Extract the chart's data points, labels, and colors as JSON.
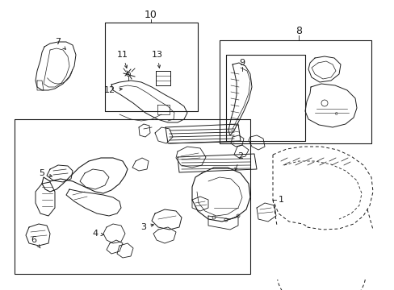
{
  "bg_color": "#ffffff",
  "line_color": "#1a1a1a",
  "fig_width": 4.89,
  "fig_height": 3.6,
  "dpi": 100,
  "title_font": 9,
  "label_font": 7,
  "lw": 0.7
}
